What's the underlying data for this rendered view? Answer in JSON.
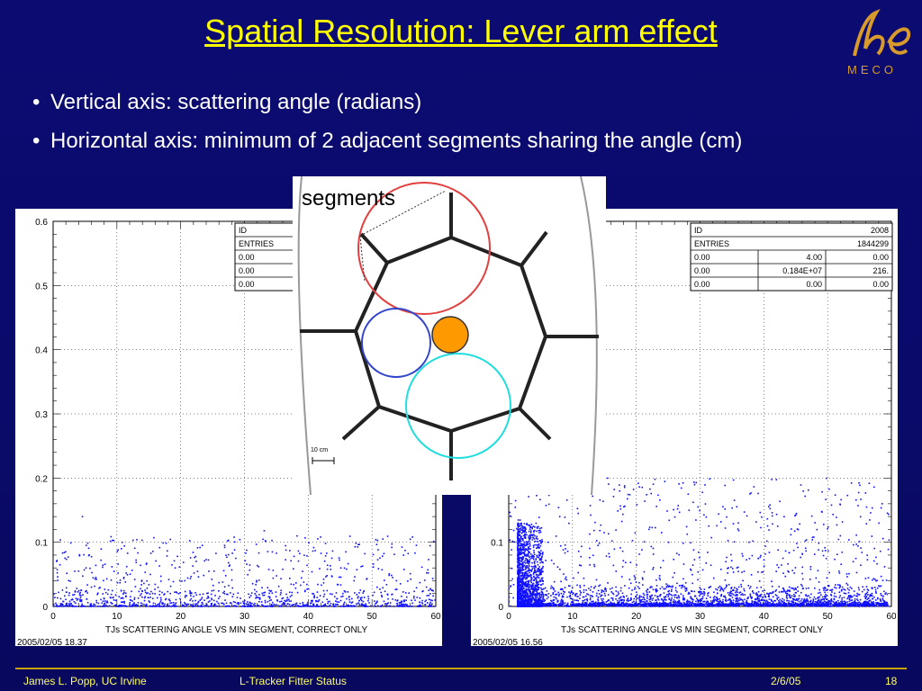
{
  "slide": {
    "title": "Spatial Resolution: Lever arm effect",
    "bullets": [
      "Vertical axis: scattering angle (radians)",
      "Horizontal axis: minimum of 2 adjacent segments sharing the angle (cm)"
    ],
    "logo": {
      "icon": "mu-e-logo-icon",
      "text": "MECO",
      "color": "#d89a2a"
    },
    "footer": {
      "author": "James L. Popp, UC Irvine",
      "project": "L-Tracker Fitter Status",
      "date": "2/6/05",
      "page": "18"
    },
    "inset": {
      "label": "segments",
      "scale": "10 cm",
      "colors": {
        "red_circle": "#e04040",
        "blue_circle": "#3344cc",
        "cyan_circle": "#22dddd",
        "orange_dot": "#ff9900"
      }
    }
  },
  "chart_data": [
    {
      "type": "scatter",
      "xlabel": "TJs  SCATTERING ANGLE VS MIN SEGMENT, CORRECT ONLY",
      "timestamp": "2005/02/05   18.37",
      "xlim": [
        0,
        60
      ],
      "ylim": [
        0,
        0.6
      ],
      "x_ticks": [
        "0",
        "10",
        "20",
        "30",
        "40",
        "50",
        "60"
      ],
      "y_ticks": [
        "0",
        "0.1",
        "0.2",
        "0.3",
        "0.4",
        "0.5",
        "0.6"
      ],
      "grid": true,
      "marker_color": "#1010ff",
      "stats_box": {
        "rows": [
          [
            "ID",
            "",
            ""
          ],
          [
            "ENTRIES",
            "",
            ""
          ],
          [
            "0.00",
            "",
            ""
          ],
          [
            "0.00",
            "",
            ""
          ],
          [
            "0.00",
            "",
            ""
          ]
        ]
      },
      "distribution": {
        "points": [
          [
            1.2,
            0.012
          ],
          [
            2.5,
            0.004
          ],
          [
            3.1,
            0.018
          ],
          [
            4.0,
            0.055
          ],
          [
            4.6,
            0.14
          ],
          [
            5.2,
            0.095
          ],
          [
            6.0,
            0.03
          ],
          [
            6.8,
            0.009
          ],
          [
            7.5,
            0.072
          ],
          [
            8.3,
            0.002
          ],
          [
            9.1,
            0.041
          ],
          [
            10.2,
            0.088
          ],
          [
            11.4,
            0.015
          ],
          [
            12.0,
            0.003
          ],
          [
            13.7,
            0.064
          ],
          [
            14.5,
            0.022
          ],
          [
            15.8,
            0.107
          ],
          [
            16.9,
            0.047
          ],
          [
            18.2,
            0.011
          ],
          [
            19.5,
            0.078
          ],
          [
            20.6,
            0.006
          ],
          [
            22.1,
            0.052
          ],
          [
            23.4,
            0.095
          ],
          [
            24.8,
            0.019
          ],
          [
            26.0,
            0.037
          ],
          [
            27.5,
            0.068
          ],
          [
            28.9,
            0.005
          ],
          [
            30.2,
            0.083
          ],
          [
            31.6,
            0.026
          ],
          [
            33.1,
            0.118
          ],
          [
            34.5,
            0.044
          ],
          [
            35.9,
            0.012
          ],
          [
            37.3,
            0.071
          ],
          [
            38.8,
            0.033
          ],
          [
            40.1,
            0.099
          ],
          [
            41.6,
            0.008
          ],
          [
            43.0,
            0.058
          ],
          [
            44.4,
            0.021
          ],
          [
            45.9,
            0.085
          ],
          [
            47.3,
            0.046
          ],
          [
            48.8,
            0.014
          ],
          [
            50.2,
            0.066
          ],
          [
            51.7,
            0.029
          ],
          [
            53.1,
            0.092
          ],
          [
            54.6,
            0.004
          ],
          [
            56.0,
            0.051
          ],
          [
            57.5,
            0.037
          ],
          [
            58.9,
            0.017
          ]
        ]
      }
    },
    {
      "type": "scatter",
      "xlabel": "TJs  SCATTERING ANGLE VS MIN SEGMENT, CORRECT ONLY",
      "timestamp": "2005/02/05   16.56",
      "xlim": [
        0,
        60
      ],
      "ylim": [
        0,
        0.6
      ],
      "x_ticks": [
        "0",
        "10",
        "20",
        "30",
        "40",
        "50",
        "60"
      ],
      "y_ticks": [
        "0",
        "0.1"
      ],
      "grid": true,
      "marker_color": "#1010ff",
      "stats_box": {
        "rows": [
          [
            "ID",
            "",
            "2008"
          ],
          [
            "ENTRIES",
            "",
            "1844299"
          ],
          [
            "0.00",
            "4.00",
            "0.00"
          ],
          [
            "0.00",
            "0.184E+07",
            "216."
          ],
          [
            "0.00",
            "0.00",
            "0.00"
          ]
        ]
      },
      "distribution": {
        "points": [
          [
            1.5,
            0.12
          ],
          [
            1.8,
            0.09
          ],
          [
            2.0,
            0.07
          ],
          [
            2.2,
            0.105
          ],
          [
            2.5,
            0.05
          ],
          [
            2.8,
            0.035
          ],
          [
            3.2,
            0.028
          ],
          [
            3.8,
            0.022
          ],
          [
            4.5,
            0.017
          ],
          [
            5.2,
            0.015
          ],
          [
            6.0,
            0.012
          ],
          [
            7.0,
            0.01
          ],
          [
            8.5,
            0.008
          ],
          [
            10.0,
            0.007
          ],
          [
            12.0,
            0.006
          ],
          [
            15.0,
            0.005
          ],
          [
            20.0,
            0.005
          ],
          [
            25.0,
            0.004
          ],
          [
            30.0,
            0.004
          ],
          [
            35.0,
            0.004
          ],
          [
            40.0,
            0.004
          ],
          [
            45.0,
            0.003
          ],
          [
            50.0,
            0.003
          ],
          [
            55.0,
            0.003
          ],
          [
            59.0,
            0.002
          ],
          [
            8.0,
            0.14
          ],
          [
            14.0,
            0.095
          ],
          [
            22.0,
            0.12
          ],
          [
            29.0,
            0.088
          ],
          [
            36.0,
            0.13
          ],
          [
            43.0,
            0.075
          ],
          [
            52.0,
            0.11
          ]
        ]
      }
    }
  ]
}
